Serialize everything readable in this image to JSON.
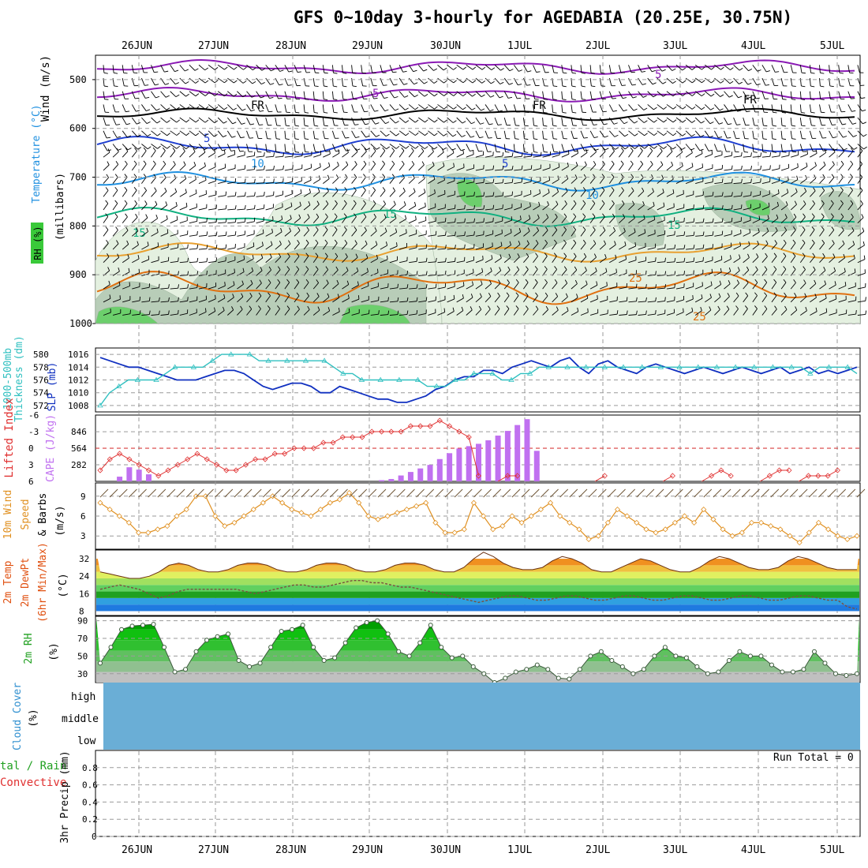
{
  "title": "GFS 0~10day 3-hourly for AGEDABIA (20.25E, 30.75N)",
  "dates": [
    "26JUN",
    "27JUN",
    "28JUN",
    "29JUN",
    "30JUN",
    "1JUL",
    "2JUL",
    "3JUL",
    "4JUL",
    "5JUL"
  ],
  "colors": {
    "frame": "#000000",
    "grid": "#9a9a9a",
    "temp_purple": "#8a1ab4",
    "temp_black": "#000000",
    "temp_blue": "#1f3fd0",
    "temp_lightblue": "#1f90e0",
    "temp_green": "#10b080",
    "temp_orange": "#e8a030",
    "temp_dark_orange": "#e07010",
    "rh_light": "#e4f0e0",
    "rh_mid": "#b8cdb8",
    "rh_dark": "#8fa68f",
    "rh_green": "#6ccf6c",
    "slp": "#1030c0",
    "thickness": "#30c0c0",
    "lifted": "#e03030",
    "cape": "#c070f0",
    "wind": "#e09020",
    "temp_fill_dark": "#e05010",
    "rh_fill": "#10c010",
    "cloud": "#6aaed6"
  },
  "labels": {
    "upper_wind": "Wind (m/s)",
    "upper_temp": "Temperature (°C)",
    "upper_rh": "RH (%)",
    "upper_mb": "(millibars)",
    "upper_fr": "FR",
    "thick_label": "1000-500mb",
    "thick_label2": "Thickness (dm)",
    "slp_label": "SLP (mb)",
    "lifted_label": "Lifted Index",
    "cape_label": "CAPE (J/kg)",
    "wind10_label": "10m Wind",
    "wind10_label2": "Speed",
    "wind10_units": "(m/s)",
    "wind10_barbs": "& Barbs",
    "t2m_label": "2m Temp",
    "t2m_label2": "2m DewPt",
    "t2m_label3": "(6hr Min/Max)",
    "t2m_units": "(°C)",
    "rh2m_label": "2m RH",
    "rh2m_units": "(%)",
    "cloud_label": "Cloud Cover",
    "cloud_units": "(%)",
    "cloud_high": "high",
    "cloud_middle": "middle",
    "cloud_low": "low",
    "precip_label1": "tal / Rain",
    "precip_label2": "Convective",
    "precip_label3": "3hr Precip (mm)",
    "run_total": "Run Total = 0"
  },
  "chart_data": [
    {
      "type": "heatmap",
      "name": "upper_air",
      "y_ticks": [
        500,
        600,
        700,
        800,
        900,
        1000
      ],
      "ylim": [
        450,
        1000
      ],
      "contour_labels": [
        "5",
        "5",
        "FR",
        "FR",
        "FR",
        "5",
        "5",
        "10",
        "10",
        "10",
        "15",
        "15",
        "15",
        "25",
        "25"
      ],
      "temperature_levels": [
        -5,
        0,
        5,
        10,
        15,
        20,
        25
      ]
    },
    {
      "type": "line",
      "name": "thickness_slp",
      "thickness_ticks": [
        572,
        574,
        576,
        578,
        580
      ],
      "slp_ticks": [
        1008,
        1010,
        1012,
        1014,
        1016
      ],
      "thickness": [
        572,
        574,
        575,
        576,
        576,
        576,
        576,
        577,
        578,
        578,
        578,
        578,
        579,
        580,
        580,
        580,
        580,
        579,
        579,
        579,
        579,
        579,
        579,
        579,
        579,
        578,
        577,
        577,
        576,
        576,
        576,
        576,
        576,
        576,
        576,
        575,
        575,
        575,
        576,
        576,
        577,
        577,
        577,
        576,
        576,
        577,
        577,
        578,
        578,
        578,
        578,
        578,
        578,
        578,
        578,
        578,
        578,
        578,
        578,
        578,
        578,
        578,
        578,
        578,
        578,
        578,
        578,
        578,
        578,
        578,
        578,
        578,
        578,
        578,
        578,
        578,
        577,
        578,
        578,
        578,
        578,
        577
      ],
      "slp": [
        1015.5,
        1015,
        1014.5,
        1014,
        1014,
        1013.5,
        1013,
        1012.5,
        1012,
        1012,
        1012,
        1012.5,
        1013,
        1013.5,
        1013.5,
        1013,
        1012,
        1011,
        1010.5,
        1011,
        1011.5,
        1011.5,
        1011,
        1010,
        1010,
        1011,
        1010.5,
        1010,
        1009.5,
        1009,
        1009,
        1008.5,
        1008.5,
        1009,
        1009.5,
        1010.5,
        1011,
        1012,
        1012.5,
        1012.5,
        1013.5,
        1013.5,
        1013,
        1014,
        1014.5,
        1015,
        1014.5,
        1014,
        1015,
        1015.5,
        1014,
        1013,
        1014.5,
        1015,
        1014,
        1013.5,
        1013,
        1014,
        1014.5,
        1014,
        1013.5,
        1013,
        1013.5,
        1014,
        1013.5,
        1013,
        1013.5,
        1014,
        1013.5,
        1013,
        1013.5,
        1014,
        1013,
        1013.5,
        1014,
        1013,
        1013.5,
        1013,
        1013.5,
        1014
      ]
    },
    {
      "type": "bar",
      "name": "lifted_cape",
      "li_ticks": [
        -6,
        -3,
        0,
        3,
        6
      ],
      "cape_ticks": [
        282,
        564,
        846
      ],
      "lifted_index": [
        4,
        2,
        1,
        2,
        3,
        4,
        5,
        4,
        3,
        2,
        1,
        2,
        3,
        4,
        4,
        3,
        2,
        2,
        1,
        1,
        0,
        0,
        0,
        -1,
        -1,
        -2,
        -2,
        -2,
        -3,
        -3,
        -3,
        -3,
        -4,
        -4,
        -4,
        -5,
        -4,
        -3,
        -2,
        5,
        6,
        6,
        5,
        5,
        6,
        6,
        6,
        6,
        6,
        6,
        6,
        6,
        5,
        6,
        6,
        6,
        6,
        6,
        6,
        5,
        6,
        6,
        6,
        5,
        4,
        5,
        6,
        6,
        6,
        5,
        4,
        4,
        6,
        5,
        5,
        5,
        4,
        6,
        6
      ],
      "cape": [
        0,
        0,
        80,
        240,
        200,
        120,
        0,
        0,
        0,
        0,
        0,
        0,
        0,
        0,
        0,
        0,
        0,
        0,
        0,
        0,
        0,
        0,
        0,
        0,
        0,
        0,
        0,
        0,
        0,
        20,
        40,
        100,
        160,
        220,
        280,
        380,
        480,
        560,
        600,
        640,
        700,
        780,
        860,
        960,
        1060,
        520,
        0,
        0,
        0,
        0,
        0,
        0,
        0,
        0,
        0,
        0,
        0,
        0,
        0,
        0,
        0,
        0,
        0,
        0,
        0,
        0,
        0,
        0,
        0,
        0,
        0,
        0,
        0,
        0,
        0,
        0,
        0,
        0,
        0
      ]
    },
    {
      "type": "line",
      "name": "wind10m",
      "y_ticks": [
        3,
        6,
        9
      ],
      "speed": [
        8,
        7,
        6,
        5,
        3.5,
        3.5,
        4,
        4.5,
        6,
        7,
        9,
        9,
        6,
        4.5,
        5,
        6,
        7,
        8,
        9,
        8,
        7,
        6.5,
        6,
        7,
        8,
        8.5,
        9.5,
        8,
        6,
        5.5,
        6,
        6.5,
        7,
        7.5,
        8,
        5,
        3.5,
        3.5,
        4,
        8,
        6,
        4,
        4.5,
        6,
        5,
        6,
        7,
        8,
        6,
        5,
        4,
        2.5,
        3,
        5,
        7,
        6,
        5,
        4,
        3.5,
        4,
        5,
        6,
        5,
        7,
        5.5,
        4,
        3,
        3.5,
        5,
        5,
        4.5,
        4,
        3,
        2,
        3.5,
        5,
        4,
        3,
        2.5,
        3
      ]
    },
    {
      "type": "area",
      "name": "temp2m",
      "y_ticks": [
        8,
        16,
        24,
        32
      ],
      "temp": [
        26,
        25,
        24,
        23,
        23,
        24,
        26,
        29,
        30,
        29,
        27,
        26,
        26,
        27,
        29,
        30,
        30,
        29,
        27,
        26,
        26,
        27,
        29,
        30,
        30,
        29,
        27,
        26,
        26,
        27,
        29,
        30,
        30,
        29,
        27,
        26,
        26,
        28,
        32,
        35,
        33,
        30,
        28,
        27,
        27,
        28,
        31,
        33,
        32,
        30,
        27,
        26,
        26,
        28,
        30,
        32,
        31,
        29,
        27,
        26,
        26,
        28,
        31,
        33,
        32,
        30,
        28,
        27,
        27,
        28,
        31,
        33,
        32,
        30,
        28,
        27,
        27,
        27
      ],
      "dewpoint": [
        18,
        19,
        20,
        19,
        18,
        16,
        14,
        15,
        17,
        18,
        18,
        18,
        18,
        18,
        18,
        17,
        16,
        17,
        18,
        19,
        20,
        20,
        19,
        19,
        20,
        21,
        22,
        22,
        21,
        21,
        20,
        19,
        19,
        18,
        17,
        16,
        15,
        14,
        13,
        12,
        13,
        14,
        15,
        15,
        14,
        13,
        13,
        14,
        15,
        15,
        14,
        13,
        13,
        14,
        15,
        15,
        14,
        13,
        13,
        14,
        15,
        15,
        14,
        13,
        13,
        14,
        15,
        15,
        14,
        13,
        13,
        14,
        15,
        15,
        14,
        13,
        13,
        10,
        9
      ]
    },
    {
      "type": "area",
      "name": "rh2m",
      "y_ticks": [
        30,
        50,
        70,
        90
      ],
      "rh": [
        42,
        60,
        80,
        84,
        85,
        86,
        60,
        32,
        35,
        55,
        68,
        72,
        75,
        45,
        38,
        42,
        60,
        78,
        80,
        85,
        60,
        45,
        48,
        65,
        82,
        88,
        90,
        75,
        55,
        50,
        65,
        85,
        60,
        48,
        50,
        38,
        30,
        20,
        25,
        32,
        35,
        40,
        35,
        25,
        24,
        35,
        50,
        55,
        45,
        38,
        30,
        35,
        50,
        60,
        50,
        48,
        38,
        30,
        32,
        45,
        55,
        50,
        50,
        40,
        32,
        32,
        35,
        55,
        42,
        30,
        28,
        30
      ],
      "points": 72
    },
    {
      "type": "bar",
      "name": "cloud",
      "rows": [
        "high",
        "middle",
        "low"
      ],
      "value": 100
    },
    {
      "type": "bar",
      "name": "precip",
      "y_ticks": [
        0,
        0.2,
        0.4,
        0.6,
        0.8
      ],
      "values": [
        0,
        0,
        0,
        0,
        0,
        0,
        0,
        0,
        0,
        0
      ]
    }
  ]
}
